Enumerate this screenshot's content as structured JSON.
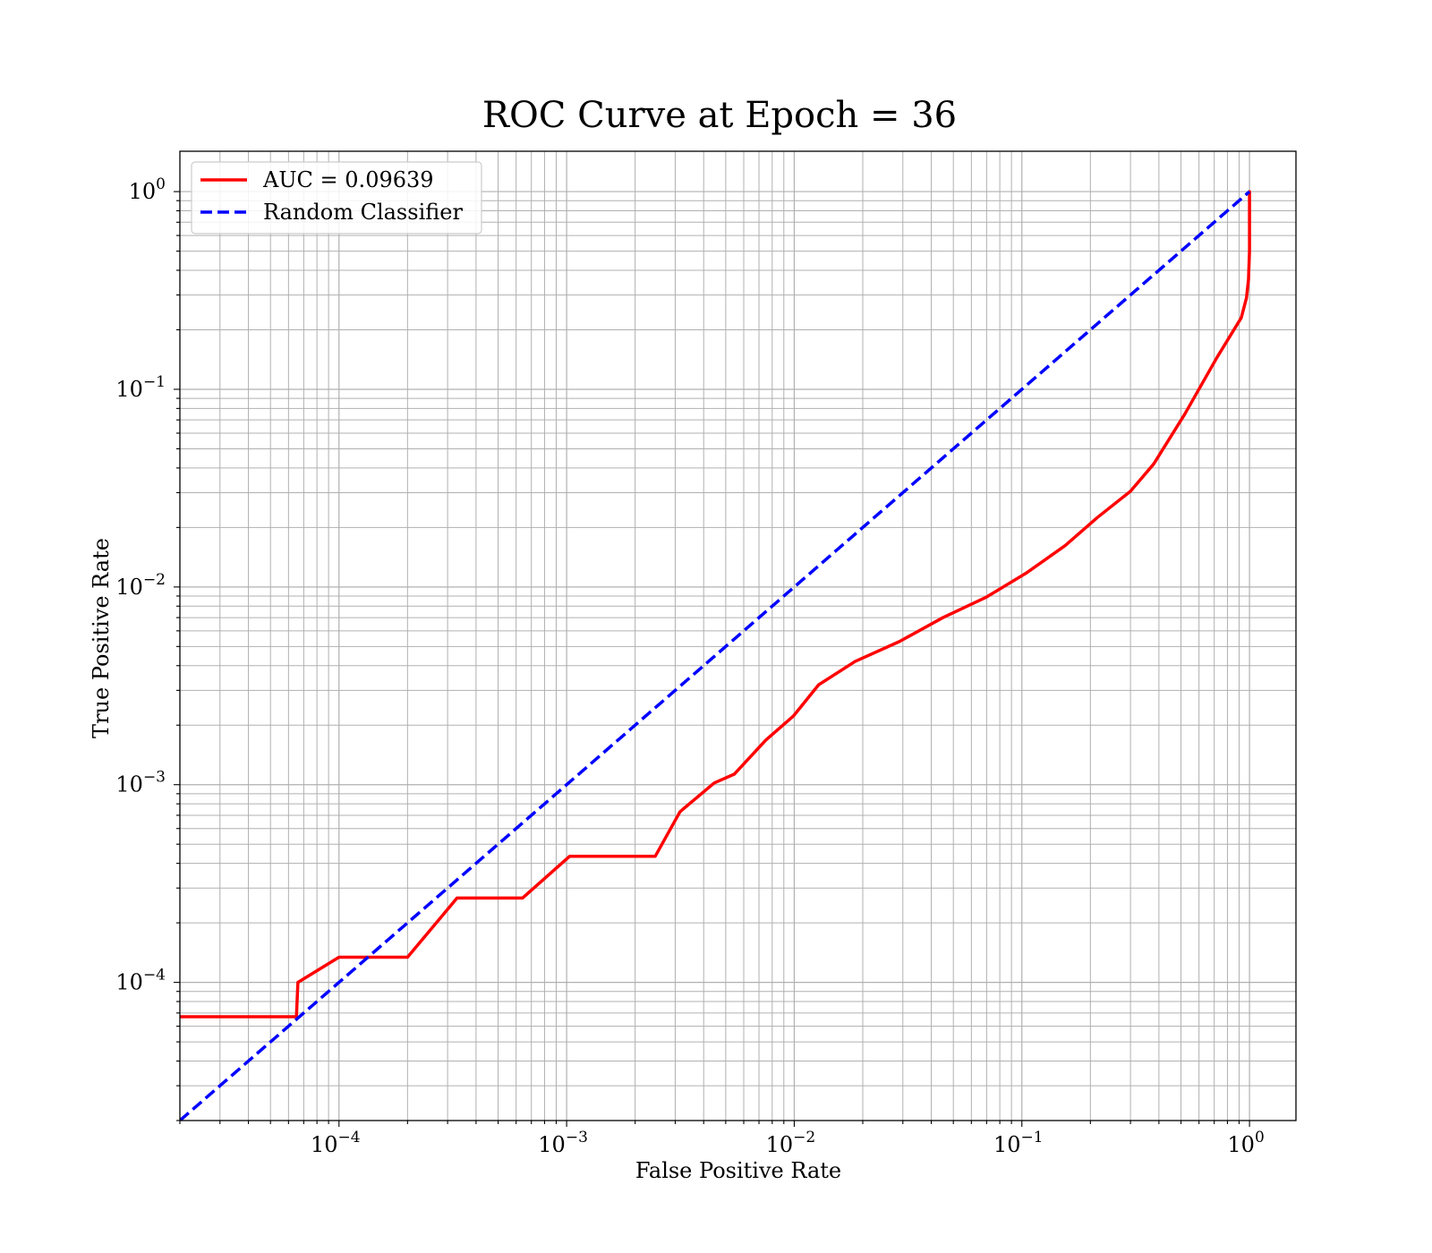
{
  "chart_data": {
    "type": "line",
    "title": "ROC Curve at Epoch = 36",
    "xlabel": "False Positive Rate",
    "ylabel": "True Positive Rate",
    "xscale": "log",
    "yscale": "log",
    "xlim": [
      2e-05,
      1.6
    ],
    "ylim": [
      2e-05,
      1.6
    ],
    "grid": true,
    "grid_minor": true,
    "legend_position": "upper left",
    "x_ticks": [
      {
        "base": "10",
        "exp": "−4",
        "value": 0.0001
      },
      {
        "base": "10",
        "exp": "−3",
        "value": 0.001
      },
      {
        "base": "10",
        "exp": "−2",
        "value": 0.01
      },
      {
        "base": "10",
        "exp": "−1",
        "value": 0.1
      },
      {
        "base": "10",
        "exp": "0",
        "value": 1
      }
    ],
    "y_ticks": [
      {
        "base": "10",
        "exp": "−4",
        "value": 0.0001
      },
      {
        "base": "10",
        "exp": "−3",
        "value": 0.001
      },
      {
        "base": "10",
        "exp": "−2",
        "value": 0.01
      },
      {
        "base": "10",
        "exp": "−1",
        "value": 0.1
      },
      {
        "base": "10",
        "exp": "0",
        "value": 1
      }
    ],
    "series": [
      {
        "name": "AUC = 0.09639",
        "color": "#ff0000",
        "style": "solid",
        "x": [
          2e-05,
          6.5e-05,
          6.6e-05,
          0.0001,
          0.0002,
          0.00033,
          0.00064,
          0.00103,
          0.00245,
          0.00315,
          0.00445,
          0.00545,
          0.0075,
          0.0099,
          0.0128,
          0.0185,
          0.029,
          0.045,
          0.07,
          0.105,
          0.155,
          0.215,
          0.3,
          0.38,
          0.52,
          0.72,
          0.92,
          0.97,
          0.99,
          1.0,
          1.0
        ],
        "y": [
          6.7e-05,
          6.7e-05,
          0.0001,
          0.000134,
          0.000134,
          0.000267,
          0.000267,
          0.000434,
          0.000434,
          0.00073,
          0.00102,
          0.00113,
          0.00168,
          0.00222,
          0.0032,
          0.0042,
          0.0053,
          0.007,
          0.0089,
          0.0118,
          0.0162,
          0.0225,
          0.0305,
          0.042,
          0.075,
          0.145,
          0.23,
          0.29,
          0.36,
          0.5,
          1.0
        ]
      },
      {
        "name": "Random Classifier",
        "color": "#0000ff",
        "style": "dashed",
        "x": [
          2e-05,
          1.0
        ],
        "y": [
          2e-05,
          1.0
        ]
      }
    ]
  }
}
